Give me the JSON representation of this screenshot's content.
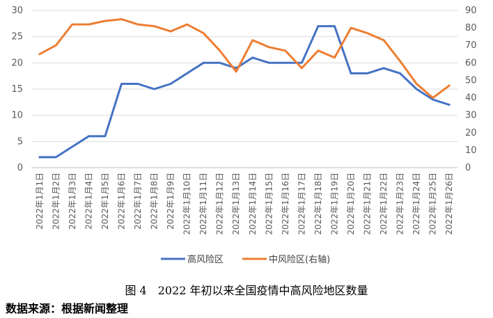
{
  "chart_data": {
    "type": "line",
    "title": "",
    "categories": [
      "2022年1月1日",
      "2022年1月2日",
      "2022年1月3日",
      "2022年1月4日",
      "2022年1月5日",
      "2022年1月6日",
      "2022年1月7日",
      "2022年1月8日",
      "2022年1月9日",
      "2022年1月10日",
      "2022年1月11日",
      "2022年1月12日",
      "2022年1月13日",
      "2022年1月14日",
      "2022年1月15日",
      "2022年1月16日",
      "2022年1月17日",
      "2022年1月18日",
      "2022年1月19日",
      "2022年1月20日",
      "2022年1月21日",
      "2022年1月22日",
      "2022年1月23日",
      "2022年1月24日",
      "2022年1月25日",
      "2022年1月26日"
    ],
    "left_axis": {
      "ylim": [
        0,
        30
      ],
      "ticks": [
        0,
        5,
        10,
        15,
        20,
        25,
        30
      ]
    },
    "right_axis": {
      "ylim": [
        0,
        90
      ],
      "ticks": [
        0,
        10,
        20,
        30,
        40,
        50,
        60,
        70,
        80,
        90
      ]
    },
    "grid": true,
    "legend_position": "bottom",
    "series": [
      {
        "name": "高风险区",
        "axis": "left",
        "color": "#4472C4",
        "values": [
          2,
          2,
          4,
          6,
          6,
          16,
          16,
          15,
          16,
          18,
          20,
          20,
          19,
          21,
          20,
          20,
          20,
          27,
          27,
          18,
          18,
          19,
          18,
          15,
          13,
          12
        ]
      },
      {
        "name": "中风险区(右轴)",
        "axis": "right",
        "color": "#ED7D31",
        "values": [
          65,
          70,
          82,
          82,
          84,
          85,
          82,
          81,
          78,
          82,
          77,
          67,
          55,
          73,
          69,
          67,
          57,
          67,
          63,
          80,
          77,
          73,
          61,
          48,
          40,
          47
        ]
      }
    ]
  },
  "caption": "图 4　2022 年初以来全国疫情中高风险地区数量",
  "source": "数据来源：根据新闻整理"
}
